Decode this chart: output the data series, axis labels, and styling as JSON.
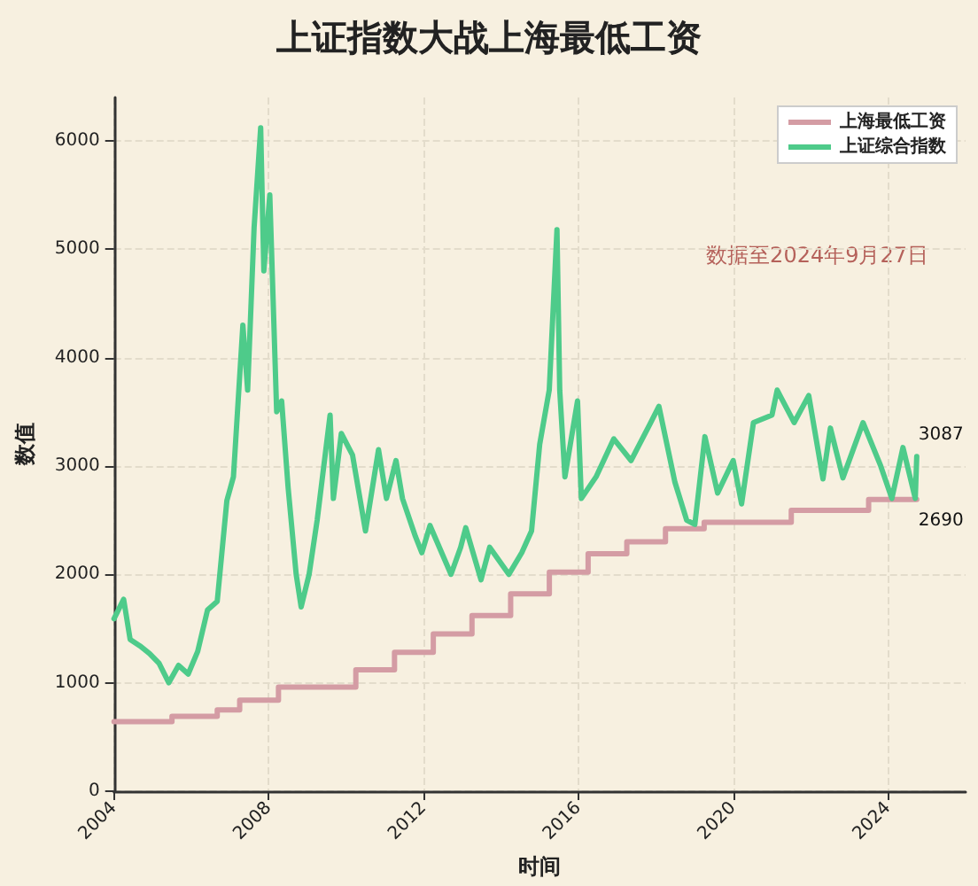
{
  "chart_data": {
    "type": "line",
    "title": "上证指数大战上海最低工资",
    "xlabel": "时间",
    "ylabel": "数值",
    "xlim": [
      "2004",
      "2026"
    ],
    "xticks": [
      "2004",
      "2008",
      "2012",
      "2016",
      "2020",
      "2024"
    ],
    "ylim": [
      0,
      6400
    ],
    "yticks": [
      0,
      1000,
      2000,
      3000,
      4000,
      5000,
      6000
    ],
    "grid": true,
    "legend": "top right",
    "annotations": [
      "数据至2024年9月27日",
      {
        "text": "3087",
        "x": "2024-09-27",
        "y": 3087
      },
      {
        "text": "2690",
        "x": "2024-09-27",
        "y": 2690
      }
    ],
    "series": [
      {
        "name": "上海最低工资",
        "type": "step",
        "color": "#d49ca4",
        "x": [
          "2004-01-01",
          "2005-07-01",
          "2006-09-01",
          "2007-04-01",
          "2008-04-01",
          "2010-04-01",
          "2011-04-01",
          "2012-04-01",
          "2013-04-01",
          "2014-04-01",
          "2015-04-01",
          "2016-04-01",
          "2017-04-01",
          "2018-04-01",
          "2019-04-01",
          "2021-07-01",
          "2023-07-01",
          "2024-09-27"
        ],
        "values": [
          640,
          690,
          750,
          840,
          960,
          1120,
          1280,
          1450,
          1620,
          1820,
          2020,
          2190,
          2300,
          2420,
          2480,
          2590,
          2690,
          2690
        ]
      },
      {
        "name": "上证综合指数",
        "color": "#4ecb8a",
        "x": [
          "2004-01-01",
          "2004-04-01",
          "2004-06-01",
          "2004-09-01",
          "2004-12-01",
          "2005-03-01",
          "2005-06-01",
          "2005-09-01",
          "2005-12-01",
          "2006-03-01",
          "2006-06-01",
          "2006-09-01",
          "2006-12-01",
          "2007-02-01",
          "2007-05-01",
          "2007-06-15",
          "2007-08-15",
          "2007-10-16",
          "2007-11-15",
          "2008-01-10",
          "2008-03-15",
          "2008-05-01",
          "2008-07-01",
          "2008-09-15",
          "2008-11-01",
          "2009-01-15",
          "2009-04-01",
          "2009-08-01",
          "2009-09-01",
          "2009-11-15",
          "2010-03-01",
          "2010-07-01",
          "2010-11-01",
          "2011-01-15",
          "2011-04-15",
          "2011-06-15",
          "2011-10-15",
          "2011-12-15",
          "2012-03-01",
          "2012-09-15",
          "2012-12-15",
          "2013-02-01",
          "2013-06-25",
          "2013-09-15",
          "2014-03-15",
          "2014-07-15",
          "2014-10-15",
          "2014-12-31",
          "2015-03-31",
          "2015-06-12",
          "2015-07-08",
          "2015-08-26",
          "2015-12-23",
          "2016-01-28",
          "2016-06-15",
          "2016-11-29",
          "2017-05-11",
          "2017-11-13",
          "2018-01-29",
          "2018-06-29",
          "2018-10-18",
          "2019-01-03",
          "2019-04-08",
          "2019-08-06",
          "2019-12-31",
          "2020-03-19",
          "2020-07-09",
          "2020-12-31",
          "2021-02-18",
          "2021-07-28",
          "2021-12-13",
          "2022-04-26",
          "2022-07-05",
          "2022-10-31",
          "2023-05-09",
          "2023-10-23",
          "2024-02-05",
          "2024-05-20",
          "2024-09-13",
          "2024-09-27"
        ],
        "values": [
          1590,
          1770,
          1400,
          1340,
          1270,
          1180,
          1000,
          1160,
          1080,
          1290,
          1670,
          1750,
          2680,
          2900,
          4300,
          3700,
          5200,
          6120,
          4800,
          5500,
          3500,
          3600,
          2800,
          2000,
          1700,
          2000,
          2500,
          3470,
          2700,
          3300,
          3100,
          2400,
          3150,
          2700,
          3050,
          2700,
          2350,
          2200,
          2450,
          2000,
          2250,
          2430,
          1950,
          2250,
          2000,
          2200,
          2400,
          3200,
          3700,
          5180,
          3700,
          2900,
          3600,
          2700,
          2900,
          3250,
          3050,
          3400,
          3550,
          2850,
          2500,
          2460,
          3270,
          2750,
          3050,
          2650,
          3400,
          3470,
          3700,
          3400,
          3650,
          2880,
          3350,
          2890,
          3400,
          3000,
          2700,
          3170,
          2700,
          3087
        ]
      }
    ]
  }
}
